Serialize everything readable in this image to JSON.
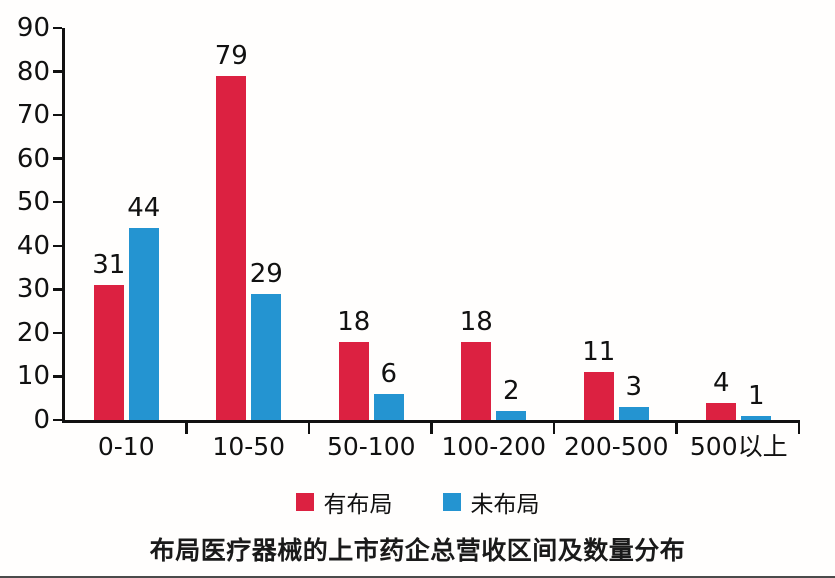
{
  "chart_data": {
    "type": "bar",
    "title": "布局医疗器械的上市药企总营收区间及数量分布",
    "categories": [
      "0-10",
      "10-50",
      "50-100",
      "100-200",
      "200-500",
      "500以上"
    ],
    "series": [
      {
        "name": "有布局",
        "color": "#DC2141",
        "values": [
          31,
          79,
          18,
          18,
          11,
          4
        ]
      },
      {
        "name": "未布局",
        "color": "#2494D1",
        "values": [
          44,
          29,
          6,
          2,
          3,
          1
        ]
      }
    ],
    "ylabel": "",
    "xlabel": "",
    "ylim": [
      0,
      90
    ],
    "ytick_step": 10,
    "grid": false,
    "legend_position": "bottom",
    "value_labels_shown": true,
    "axis_color": "#111111",
    "text_color": "#111111"
  }
}
